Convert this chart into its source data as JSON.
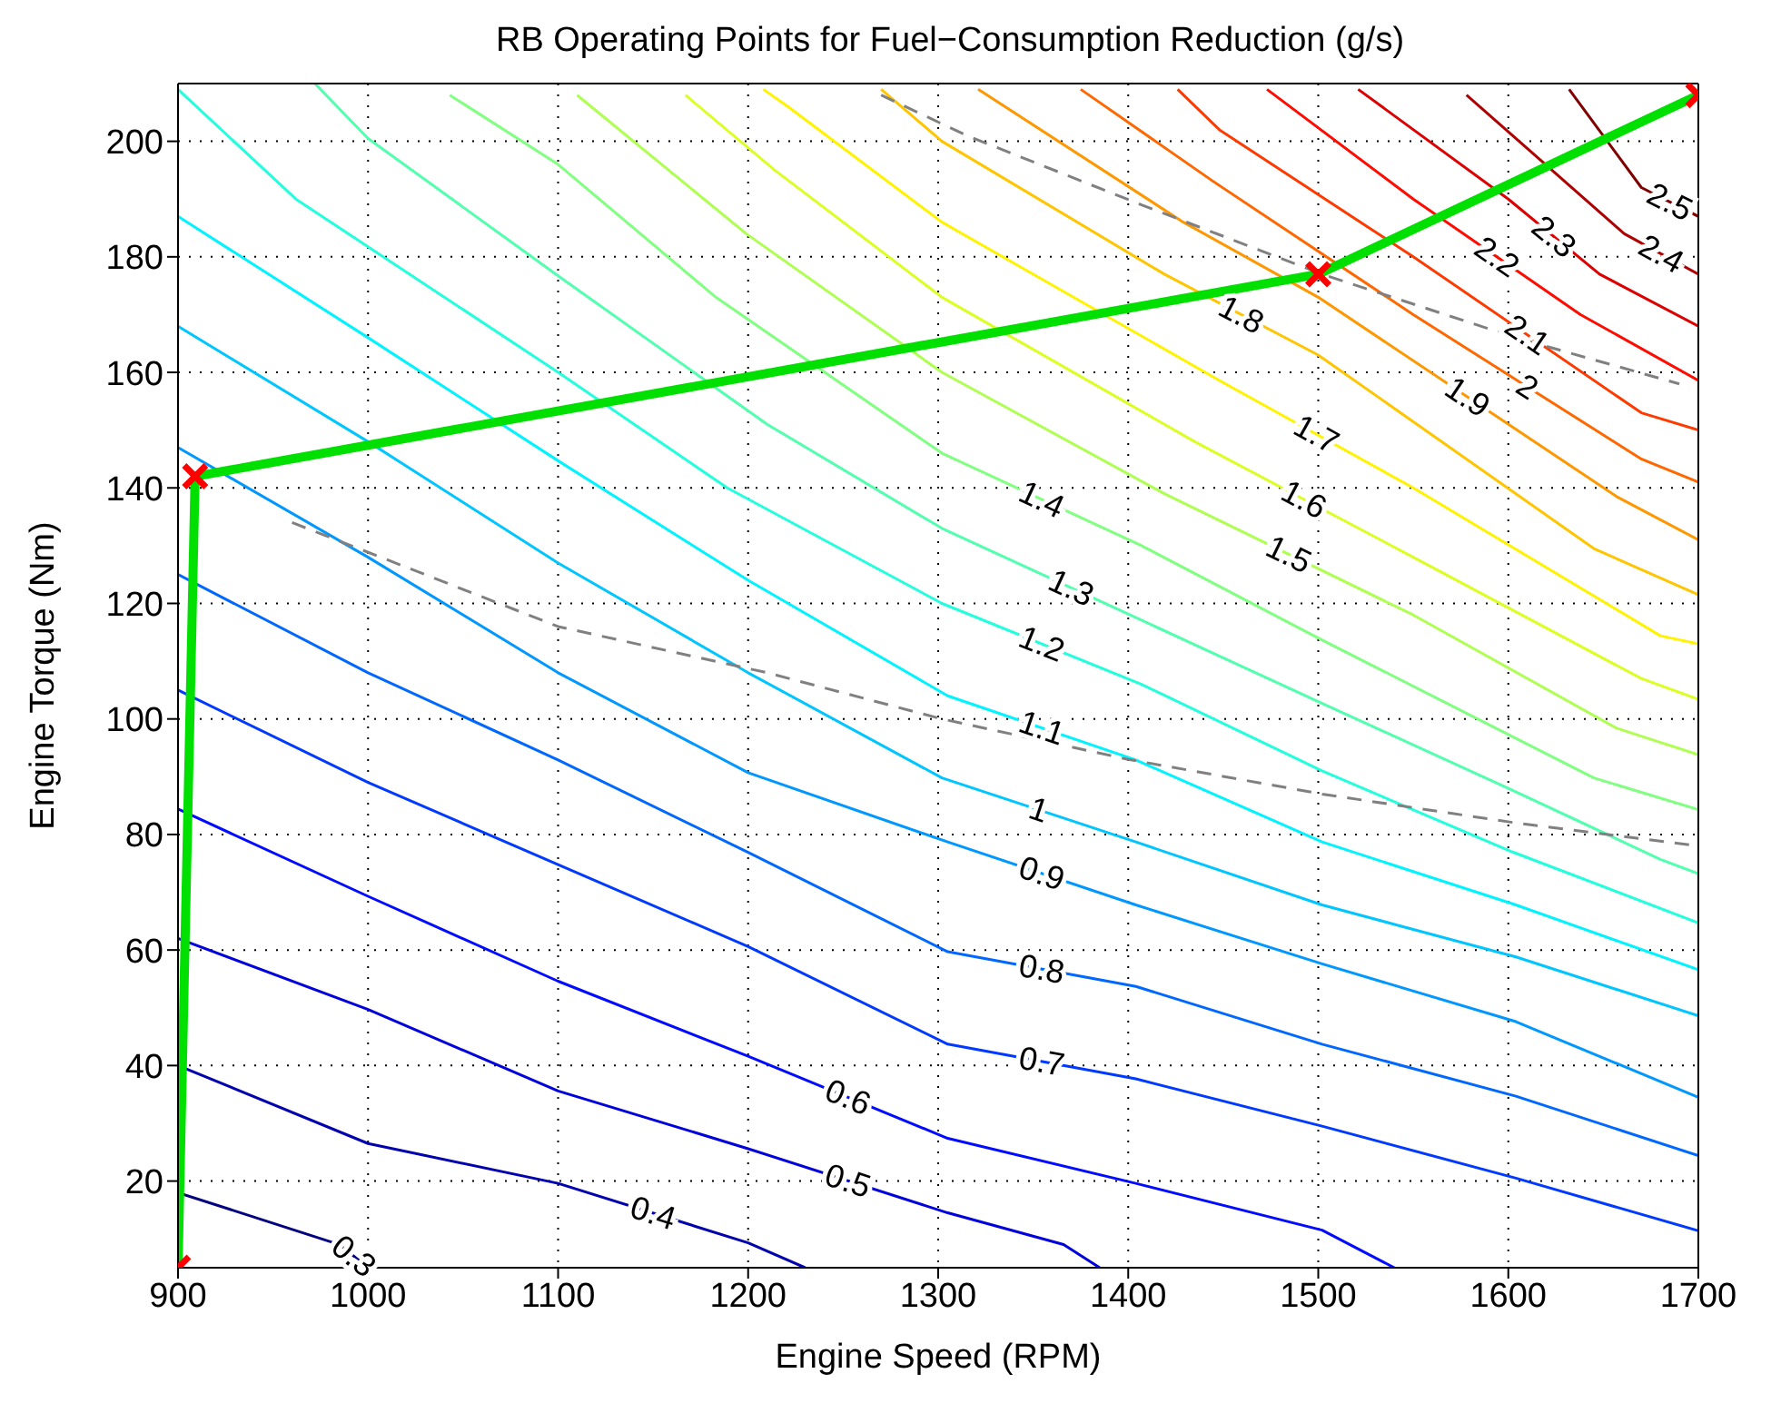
{
  "chart_data": {
    "type": "line",
    "title": "RB Operating Points for Fuel−Consumption Reduction (g/s)",
    "xlabel": "Engine Speed (RPM)",
    "ylabel": "Engine Torque (Nm)",
    "xlim": [
      900,
      1700
    ],
    "xticks": [
      900,
      1000,
      1100,
      1200,
      1300,
      1400,
      1500,
      1600,
      1700
    ],
    "ylim": [
      5,
      210
    ],
    "yticks": [
      20,
      40,
      60,
      80,
      100,
      120,
      140,
      160,
      180,
      200
    ],
    "grid": true,
    "line_style": "solid",
    "marker": "none",
    "series": [
      {
        "name": "0.3",
        "color": "#000080",
        "x": [
          900,
          985,
          1000
        ],
        "values": [
          18,
          9,
          5
        ]
      },
      {
        "name": "0.4",
        "color": "#0000ae",
        "x": [
          900,
          1000,
          1100,
          1200,
          1230
        ],
        "values": [
          40,
          26.5,
          19.6,
          9.3,
          5
        ]
      },
      {
        "name": "0.5",
        "color": "#0000dc",
        "x": [
          900,
          1000,
          1100,
          1200,
          1305,
          1366,
          1385
        ],
        "values": [
          62,
          49.7,
          35.6,
          25.6,
          14.5,
          9,
          5
        ]
      },
      {
        "name": "0.6",
        "color": "#000bff",
        "x": [
          900,
          1000,
          1100,
          1200,
          1305,
          1404,
          1502,
          1540
        ],
        "values": [
          84.4,
          69.3,
          54.6,
          41.6,
          27.4,
          19.6,
          11.5,
          5
        ]
      },
      {
        "name": "0.7",
        "color": "#003aff",
        "x": [
          900,
          1000,
          1100,
          1200,
          1305,
          1404,
          1502,
          1604,
          1700
        ],
        "values": [
          105,
          89,
          74.8,
          60.6,
          43.7,
          37.7,
          29.5,
          20.5,
          11.4
        ]
      },
      {
        "name": "0.8",
        "color": "#0068ff",
        "x": [
          900,
          1000,
          1100,
          1200,
          1305,
          1404,
          1502,
          1604,
          1700
        ],
        "values": [
          125,
          108,
          92.9,
          76.9,
          59.7,
          53.7,
          43.7,
          34.7,
          24.4
        ]
      },
      {
        "name": "0.9",
        "color": "#0097ff",
        "x": [
          900,
          1000,
          1100,
          1200,
          1305,
          1404,
          1502,
          1604,
          1700
        ],
        "values": [
          147,
          128,
          108,
          90.7,
          78.7,
          67.8,
          57.6,
          47.6,
          34.5
        ]
      },
      {
        "name": "1",
        "color": "#00c5ff",
        "x": [
          900,
          1000,
          1100,
          1200,
          1302,
          1404,
          1502,
          1604,
          1700
        ],
        "values": [
          168,
          148,
          127,
          108,
          89.8,
          78.7,
          67.8,
          58.8,
          48.6
        ]
      },
      {
        "name": "1.1",
        "color": "#00f3ff",
        "x": [
          900,
          1000,
          1100,
          1200,
          1305,
          1404,
          1502,
          1604,
          1700
        ],
        "values": [
          187,
          166,
          144.7,
          124,
          104,
          92.9,
          78.7,
          67.8,
          56.6
        ]
      },
      {
        "name": "1.2",
        "color": "#23ffdc",
        "x": [
          900,
          962,
          1100,
          1189,
          1302,
          1407,
          1502,
          1602,
          1700
        ],
        "values": [
          209,
          190,
          160,
          140,
          120,
          106,
          91,
          77,
          64.7
        ]
      },
      {
        "name": "1.3",
        "color": "#51ffae",
        "x": [
          972,
          1000,
          1100,
          1210,
          1302,
          1438,
          1500,
          1600,
          1680,
          1700
        ],
        "values": [
          210,
          200.5,
          176.7,
          151,
          133,
          112.4,
          103,
          88,
          75.7,
          73.2
        ]
      },
      {
        "name": "1.4",
        "color": "#80ff80",
        "x": [
          1043,
          1100,
          1183,
          1302,
          1407,
          1500,
          1645,
          1700
        ],
        "values": [
          208,
          196,
          173,
          146,
          130,
          114,
          89.8,
          84.3
        ]
      },
      {
        "name": "1.5",
        "color": "#aeff51",
        "x": [
          1110,
          1199,
          1302,
          1419,
          1550,
          1657,
          1700
        ],
        "values": [
          208,
          184,
          160,
          139,
          118,
          98.4,
          93.8
        ]
      },
      {
        "name": "1.6",
        "color": "#dcff23",
        "x": [
          1167,
          1214,
          1302,
          1435,
          1550,
          1670,
          1700
        ],
        "values": [
          208,
          195,
          173,
          148,
          128,
          107,
          103.4
        ]
      },
      {
        "name": "1.7",
        "color": "#fff300",
        "x": [
          1208,
          1221,
          1302,
          1448,
          1550,
          1680,
          1700
        ],
        "values": [
          209,
          206,
          186,
          158.6,
          140,
          114.4,
          113
        ]
      },
      {
        "name": "1.8",
        "color": "#ffc500",
        "x": [
          1270,
          1302,
          1419,
          1500,
          1645,
          1700
        ],
        "values": [
          209,
          200,
          177,
          163,
          129.5,
          121.5
        ]
      },
      {
        "name": "1.9",
        "color": "#ff9700",
        "x": [
          1321,
          1429,
          1500,
          1657,
          1700
        ],
        "values": [
          209,
          186,
          173,
          138.5,
          131
        ]
      },
      {
        "name": "2",
        "color": "#ff6800",
        "x": [
          1375,
          1445,
          1550,
          1670,
          1700
        ],
        "values": [
          209,
          193,
          170,
          145,
          141
        ]
      },
      {
        "name": "2.1",
        "color": "#ff3a00",
        "x": [
          1426,
          1448,
          1550,
          1670,
          1700
        ],
        "values": [
          209,
          202,
          180,
          153,
          150
        ]
      },
      {
        "name": "2.2",
        "color": "#ff0b00",
        "x": [
          1473,
          1550,
          1638,
          1700
        ],
        "values": [
          209,
          190,
          170,
          158.6
        ]
      },
      {
        "name": "2.3",
        "color": "#dc0000",
        "x": [
          1521,
          1600,
          1648,
          1700
        ],
        "values": [
          209,
          190,
          177,
          168
        ]
      },
      {
        "name": "2.4",
        "color": "#ae0000",
        "x": [
          1578,
          1661,
          1700
        ],
        "values": [
          208,
          184,
          177
        ]
      },
      {
        "name": "2.5",
        "color": "#800000",
        "x": [
          1632,
          1670,
          1700
        ],
        "values": [
          209,
          192,
          187
        ]
      },
      {
        "color": "#808080",
        "line_style": "dashed",
        "x": [
          960,
          1100,
          1210,
          1302,
          1400,
          1502,
          1604,
          1700
        ],
        "values": [
          134,
          116,
          108,
          100,
          93,
          87,
          82,
          78
        ]
      },
      {
        "color": "#808080",
        "line_style": "dashed",
        "x": [
          1270,
          1315,
          1407,
          1502,
          1604,
          1690
        ],
        "values": [
          208,
          201,
          189,
          177,
          166,
          158
        ]
      },
      {
        "color": "#00e000",
        "x": [
          900,
          909,
          1500,
          1700
        ],
        "values": [
          5,
          142,
          177,
          208
        ]
      },
      {
        "type": "scatter",
        "color": "#ff0000",
        "marker": "cross",
        "x": [
          900,
          909,
          1500,
          1700
        ],
        "values": [
          5,
          142,
          177,
          208
        ]
      }
    ]
  }
}
